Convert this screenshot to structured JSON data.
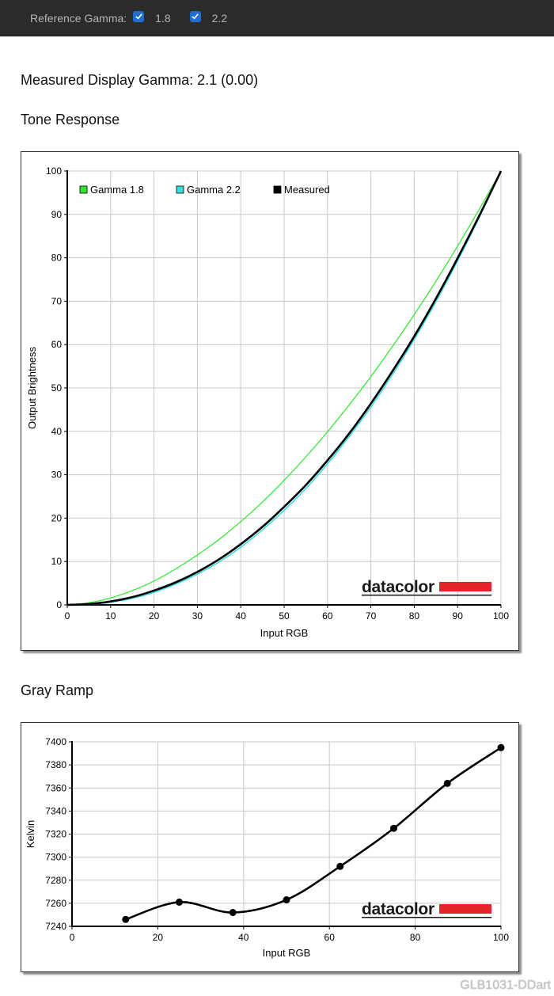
{
  "topbar": {
    "label": "Reference Gamma:",
    "options": [
      {
        "label": "1.8",
        "checked": true
      },
      {
        "label": "2.2",
        "checked": true
      }
    ]
  },
  "measured_gamma_text": "Measured Display Gamma: 2.1 (0.00)",
  "tone_response_title": "Tone Response",
  "gray_ramp_title": "Gray Ramp",
  "brand": "datacolor",
  "colors": {
    "brand_red": "#e3242b",
    "gamma18": "#2ee62e",
    "gamma22": "#33dde0",
    "measured": "#000000",
    "grid": "#c8c8c8"
  },
  "watermark": "GLB1031-DDart",
  "chart_data": [
    {
      "type": "line",
      "title": "Tone Response",
      "xlabel": "Input RGB",
      "ylabel": "Output Brightness",
      "xlim": [
        0,
        100
      ],
      "ylim": [
        0,
        100
      ],
      "xticks": [
        0,
        10,
        20,
        30,
        40,
        50,
        60,
        70,
        80,
        90,
        100
      ],
      "yticks": [
        0,
        10,
        20,
        30,
        40,
        50,
        60,
        70,
        80,
        90,
        100
      ],
      "grid": true,
      "legend_position": "top-left",
      "series": [
        {
          "name": "Gamma 1.8",
          "color": "#2ee62e",
          "x": [
            0,
            5,
            10,
            15,
            20,
            25,
            30,
            35,
            40,
            45,
            50,
            55,
            60,
            65,
            70,
            75,
            80,
            85,
            90,
            95,
            100
          ],
          "y": [
            0,
            0.5,
            1.6,
            3.3,
            5.5,
            8.3,
            11.5,
            15.1,
            19.2,
            23.7,
            28.7,
            34.1,
            39.9,
            46.1,
            52.6,
            59.6,
            66.9,
            74.6,
            82.7,
            91.2,
            100
          ]
        },
        {
          "name": "Gamma 2.2",
          "color": "#33dde0",
          "x": [
            0,
            5,
            10,
            15,
            20,
            25,
            30,
            35,
            40,
            45,
            50,
            55,
            60,
            65,
            70,
            75,
            80,
            85,
            90,
            95,
            100
          ],
          "y": [
            0,
            0.1,
            0.6,
            1.5,
            2.9,
            4.8,
            7.1,
            9.9,
            13.3,
            17.3,
            21.8,
            26.8,
            32.5,
            38.8,
            45.6,
            53.1,
            61.2,
            69.9,
            79.3,
            89.3,
            100
          ]
        },
        {
          "name": "Measured",
          "color": "#000000",
          "x": [
            0,
            5,
            10,
            15,
            20,
            25,
            30,
            35,
            40,
            45,
            50,
            55,
            60,
            65,
            70,
            75,
            80,
            85,
            90,
            95,
            100
          ],
          "y": [
            0,
            0.2,
            0.8,
            1.8,
            3.3,
            5.2,
            7.6,
            10.5,
            14.0,
            18.0,
            22.6,
            27.6,
            33.3,
            39.5,
            46.4,
            53.9,
            61.9,
            70.6,
            79.9,
            89.7,
            100
          ]
        }
      ]
    },
    {
      "type": "line",
      "title": "Gray Ramp",
      "xlabel": "Input RGB",
      "ylabel": "Kelvin",
      "xlim": [
        0,
        100
      ],
      "ylim": [
        7240,
        7400
      ],
      "xticks": [
        0,
        20,
        40,
        60,
        80,
        100
      ],
      "yticks": [
        7240,
        7260,
        7280,
        7300,
        7320,
        7340,
        7360,
        7380,
        7400
      ],
      "grid": true,
      "series": [
        {
          "color": "#000000",
          "x": [
            12.5,
            25,
            37.5,
            50,
            62.5,
            75,
            87.5,
            100
          ],
          "y": [
            7246,
            7261,
            7252,
            7263,
            7292,
            7325,
            7364,
            7395
          ]
        }
      ]
    }
  ]
}
